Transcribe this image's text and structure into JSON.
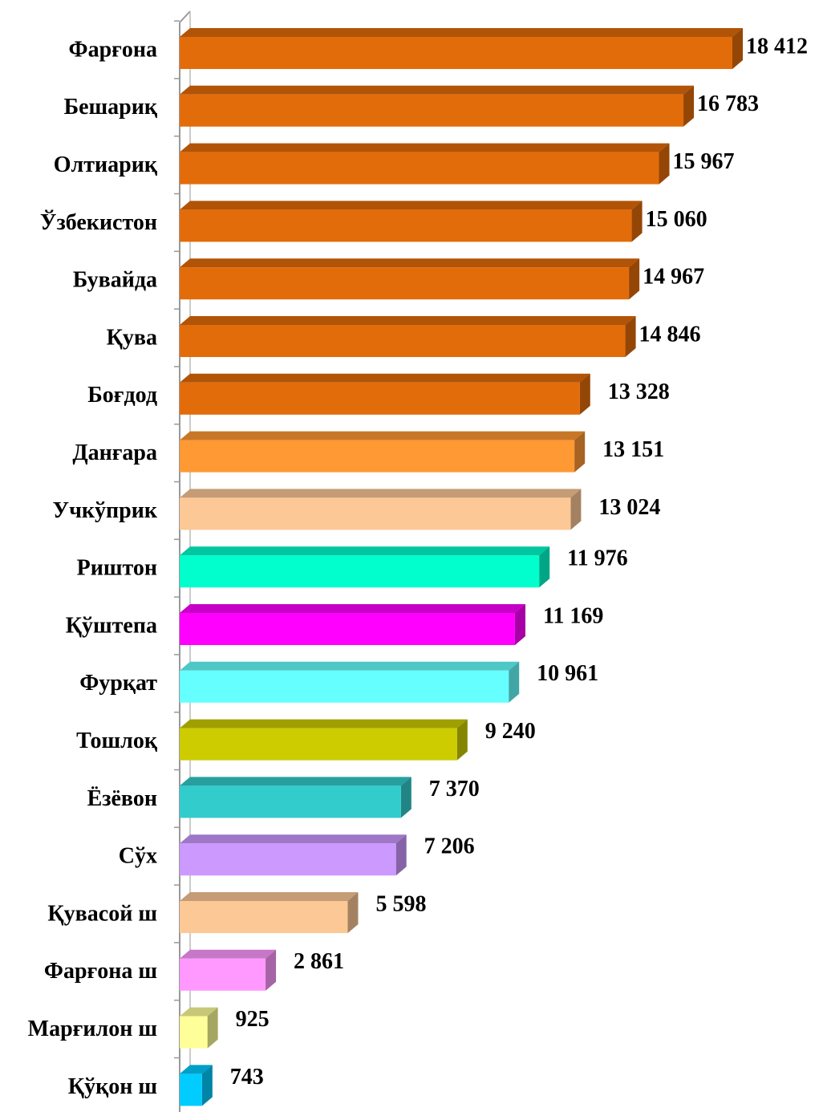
{
  "chart_data": {
    "type": "bar",
    "orientation": "horizontal",
    "categories": [
      "Фарғона",
      "Бешариқ",
      "Олтиариқ",
      "Ўзбекистон",
      "Бувайда",
      "Қува",
      "Боғдод",
      "Данғара",
      "Учкўприк",
      "Риштон",
      "Қўштепа",
      "Фурқат",
      "Тошлоқ",
      "Ёзёвон",
      "Сўх",
      "Қувасой ш",
      "Фарғона ш",
      "Марғилон ш",
      "Қўқон ш"
    ],
    "values": [
      18412,
      16783,
      15967,
      15060,
      14967,
      14846,
      13328,
      13151,
      13024,
      11976,
      11169,
      10961,
      9240,
      7370,
      7206,
      5598,
      2861,
      925,
      743
    ],
    "value_labels": [
      "18 412",
      "16 783",
      "15 967",
      "15 060",
      "14 967",
      "14 846",
      "13 328",
      "13 151",
      "13 024",
      "11 976",
      "11 169",
      "10 961",
      "9 240",
      "7 370",
      "7 206",
      "5 598",
      "2 861",
      "925",
      "743"
    ],
    "colors": [
      "#e36c0a",
      "#e36c0a",
      "#e36c0a",
      "#e36c0a",
      "#e36c0a",
      "#e36c0a",
      "#e36c0a",
      "#ff9933",
      "#fcc896",
      "#00ffcc",
      "#ff00ff",
      "#66ffff",
      "#cccc00",
      "#33cccc",
      "#cc99ff",
      "#fcc896",
      "#ff99ff",
      "#ffff99",
      "#00ccff"
    ]
  }
}
